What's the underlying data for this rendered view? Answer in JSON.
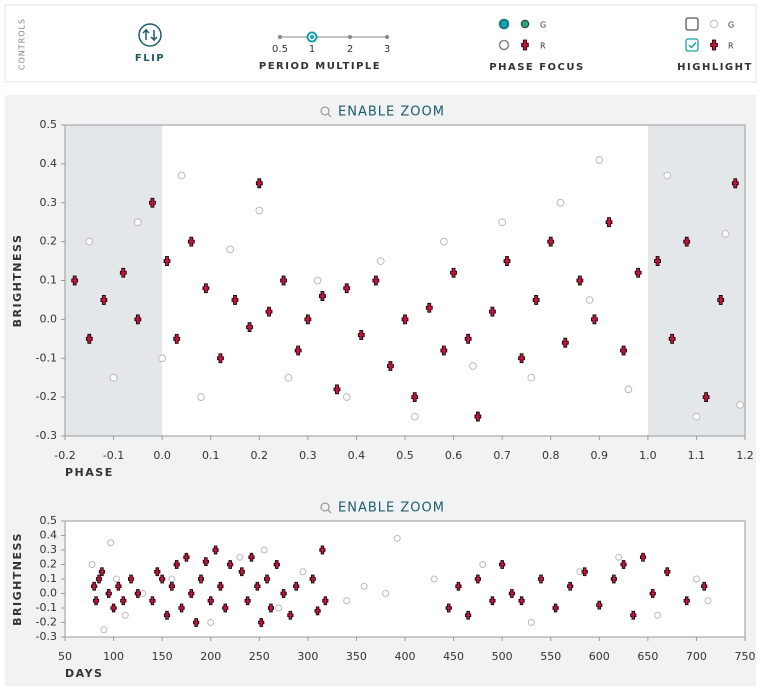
{
  "controls": {
    "title": "CONTROLS",
    "flip": "FLIP",
    "period_multiple": {
      "label": "PERIOD MULTIPLE",
      "options": [
        "0.5",
        "1",
        "2",
        "3"
      ],
      "selected": 1
    },
    "phase_focus": {
      "label": "PHASE FOCUS",
      "options": [
        {
          "label": "G",
          "checked": true
        },
        {
          "label": "R",
          "checked": false
        }
      ]
    },
    "highlight": {
      "label": "HIGHLIGHT",
      "options": [
        {
          "label": "G",
          "checked": false
        },
        {
          "label": "R",
          "checked": true
        }
      ]
    }
  },
  "chart_data": [
    {
      "type": "scatter",
      "zoom_label": "ENABLE ZOOM",
      "xlabel": "PHASE",
      "ylabel": "BRIGHTNESS",
      "xlim": [
        -0.2,
        1.2
      ],
      "ylim": [
        -0.3,
        0.5
      ],
      "xticks": [
        -0.2,
        -0.1,
        {
          "value": 0,
          "label": "0.0"
        },
        0.1,
        0.2,
        0.3,
        0.4,
        0.5,
        0.6,
        0.7,
        0.8,
        0.9,
        {
          "value": 1,
          "label": "1.0"
        },
        1.1,
        1.2
      ],
      "yticks": [
        -0.3,
        -0.2,
        -0.1,
        {
          "value": 0,
          "label": "0.0"
        },
        0.1,
        0.2,
        0.3,
        0.4,
        0.5
      ],
      "shaded": [
        [
          -0.2,
          0
        ],
        [
          1,
          1.2
        ]
      ],
      "series": [
        {
          "name": "G",
          "color": "#bbbbbb",
          "marker": "circle",
          "x": [
            -0.15,
            -0.1,
            -0.05,
            0.0,
            0.04,
            0.08,
            0.14,
            0.2,
            0.26,
            0.32,
            0.38,
            0.45,
            0.52,
            0.58,
            0.64,
            0.7,
            0.76,
            0.82,
            0.88,
            0.9,
            0.96,
            1.04,
            1.1,
            1.16,
            1.19
          ],
          "y": [
            0.2,
            -0.15,
            0.25,
            -0.1,
            0.37,
            -0.2,
            0.18,
            0.28,
            -0.15,
            0.1,
            -0.2,
            0.15,
            -0.25,
            0.2,
            -0.12,
            0.25,
            -0.15,
            0.3,
            0.05,
            0.41,
            -0.18,
            0.37,
            -0.25,
            0.22,
            -0.22
          ]
        },
        {
          "name": "R",
          "color": "#c8143c",
          "marker": "cross",
          "x": [
            -0.18,
            -0.15,
            -0.12,
            -0.08,
            -0.05,
            -0.02,
            0.01,
            0.03,
            0.06,
            0.09,
            0.12,
            0.15,
            0.18,
            0.2,
            0.22,
            0.25,
            0.28,
            0.3,
            0.33,
            0.36,
            0.38,
            0.41,
            0.44,
            0.47,
            0.5,
            0.52,
            0.55,
            0.58,
            0.6,
            0.63,
            0.65,
            0.68,
            0.71,
            0.74,
            0.77,
            0.8,
            0.83,
            0.86,
            0.89,
            0.92,
            0.95,
            0.98,
            1.02,
            1.05,
            1.08,
            1.12,
            1.15,
            1.18
          ],
          "y": [
            0.1,
            -0.05,
            0.05,
            0.12,
            0.0,
            0.3,
            0.15,
            -0.05,
            0.2,
            0.08,
            -0.1,
            0.05,
            -0.02,
            0.35,
            0.02,
            0.1,
            -0.08,
            0.0,
            0.06,
            -0.18,
            0.08,
            -0.04,
            0.1,
            -0.12,
            0.0,
            -0.2,
            0.03,
            -0.08,
            0.12,
            -0.05,
            -0.25,
            0.02,
            0.15,
            -0.1,
            0.05,
            0.2,
            -0.06,
            0.1,
            0.0,
            0.25,
            -0.08,
            0.12,
            0.15,
            -0.05,
            0.2,
            -0.2,
            0.05,
            0.35
          ]
        }
      ]
    },
    {
      "type": "scatter",
      "zoom_label": "ENABLE ZOOM",
      "xlabel": "DAYS",
      "ylabel": "BRIGHTNESS",
      "xlim": [
        50,
        750
      ],
      "ylim": [
        -0.3,
        0.5
      ],
      "xticks": [
        50,
        100,
        150,
        200,
        250,
        300,
        350,
        400,
        450,
        500,
        550,
        600,
        650,
        700,
        750
      ],
      "yticks": [
        -0.3,
        -0.2,
        -0.1,
        {
          "value": 0,
          "label": "0.0"
        },
        0.1,
        0.2,
        0.3,
        0.4,
        0.5
      ],
      "series": [
        {
          "name": "G",
          "color": "#bbbbbb",
          "marker": "circle",
          "x": [
            78,
            90,
            97,
            103,
            112,
            130,
            160,
            200,
            230,
            255,
            270,
            295,
            340,
            358,
            380,
            392,
            430,
            480,
            530,
            580,
            620,
            660,
            700,
            712
          ],
          "y": [
            0.2,
            -0.25,
            0.35,
            0.1,
            -0.15,
            0.0,
            0.1,
            -0.2,
            0.25,
            0.3,
            -0.1,
            0.15,
            -0.05,
            0.05,
            0.0,
            0.38,
            0.1,
            0.2,
            -0.2,
            0.15,
            0.25,
            -0.15,
            0.1,
            -0.05
          ]
        },
        {
          "name": "R",
          "color": "#c8143c",
          "marker": "cross",
          "x": [
            80,
            82,
            85,
            88,
            95,
            100,
            105,
            110,
            118,
            125,
            140,
            145,
            150,
            155,
            160,
            165,
            170,
            175,
            180,
            185,
            190,
            195,
            200,
            205,
            210,
            215,
            220,
            232,
            238,
            242,
            248,
            252,
            258,
            262,
            268,
            275,
            282,
            288,
            305,
            310,
            315,
            318,
            445,
            455,
            465,
            475,
            490,
            500,
            510,
            520,
            540,
            555,
            570,
            585,
            600,
            615,
            625,
            635,
            645,
            655,
            670,
            690,
            708
          ],
          "y": [
            0.05,
            -0.05,
            0.1,
            0.15,
            0.0,
            -0.1,
            0.05,
            -0.05,
            0.1,
            0.0,
            -0.05,
            0.15,
            0.1,
            -0.15,
            0.05,
            0.2,
            -0.1,
            0.25,
            0.0,
            -0.2,
            0.1,
            0.22,
            -0.05,
            0.3,
            0.05,
            -0.1,
            0.2,
            0.15,
            -0.05,
            0.25,
            0.05,
            -0.2,
            0.1,
            -0.1,
            0.2,
            0.0,
            -0.15,
            0.05,
            0.1,
            -0.12,
            0.3,
            -0.05,
            -0.1,
            0.05,
            -0.15,
            0.1,
            -0.05,
            0.2,
            0.0,
            -0.05,
            0.1,
            -0.1,
            0.05,
            0.15,
            -0.08,
            0.1,
            0.2,
            -0.15,
            0.25,
            0.0,
            0.15,
            -0.05,
            0.05
          ]
        }
      ]
    }
  ]
}
